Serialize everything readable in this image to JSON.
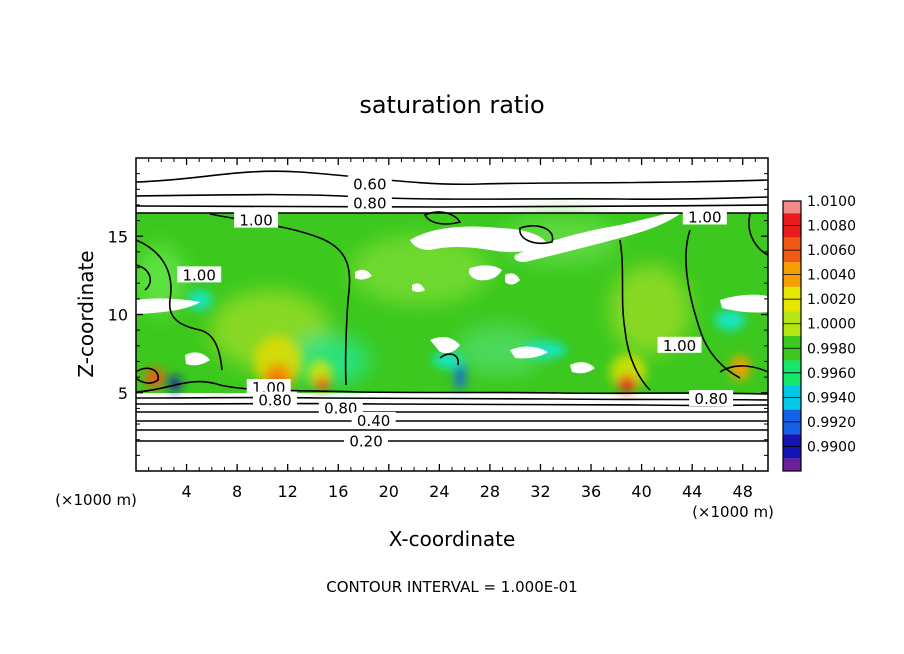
{
  "chart_data": {
    "type": "heatmap",
    "title": "saturation ratio",
    "xlabel": "X-coordinate",
    "ylabel": "Z-coordinate",
    "x_unit": "(×1000 m)",
    "y_unit": "(×1000 m)",
    "xlim": [
      0,
      50
    ],
    "ylim": [
      0,
      20
    ],
    "x_ticks": [
      "4",
      "8",
      "12",
      "16",
      "20",
      "24",
      "28",
      "32",
      "36",
      "40",
      "44",
      "48"
    ],
    "y_ticks": [
      "5",
      "10",
      "15"
    ],
    "footer": "CONTOUR INTERVAL = 1.000E-01",
    "colorbar": {
      "levels": [
        "1.0100",
        "1.0080",
        "1.0060",
        "1.0040",
        "1.0020",
        "1.0000",
        "0.9980",
        "0.9960",
        "0.9940",
        "0.9920",
        "0.9900"
      ],
      "colors": [
        "#f58a8a",
        "#e81c1c",
        "#f05a14",
        "#f5a000",
        "#e6e600",
        "#b4e614",
        "#3cc81e",
        "#14e66e",
        "#00c8e6",
        "#1460e6",
        "#1414b4",
        "#6e1e96"
      ]
    },
    "contour_labels": [
      {
        "text": "0.60",
        "x": 18.5,
        "y": 18.3
      },
      {
        "text": "0.80",
        "x": 18.5,
        "y": 17.1
      },
      {
        "text": "1.00",
        "x": 9.5,
        "y": 16.0
      },
      {
        "text": "1.00",
        "x": 45.0,
        "y": 16.2
      },
      {
        "text": "1.00",
        "x": 5.0,
        "y": 12.5
      },
      {
        "text": "1.00",
        "x": 43.0,
        "y": 8.0
      },
      {
        "text": "1.00",
        "x": 10.5,
        "y": 5.3
      },
      {
        "text": "0.80",
        "x": 11.0,
        "y": 4.5
      },
      {
        "text": "0.80",
        "x": 16.2,
        "y": 4.0
      },
      {
        "text": "0.80",
        "x": 45.5,
        "y": 4.6
      },
      {
        "text": "0.40",
        "x": 18.8,
        "y": 3.2
      },
      {
        "text": "0.20",
        "x": 18.2,
        "y": 1.9
      }
    ]
  }
}
